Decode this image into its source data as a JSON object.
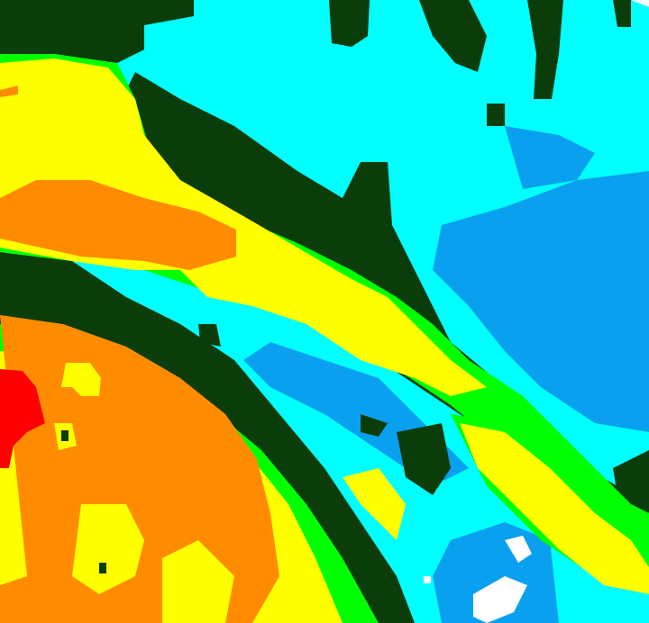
{
  "map": {
    "type": "classified raster",
    "colors": {
      "background": "#00ffff",
      "dark_green": "#0b3d0b",
      "green": "#00ff00",
      "yellow": "#ffff00",
      "orange": "#ff8c00",
      "red": "#ff0000",
      "blue": "#0aa0f0",
      "white": "#ffffff"
    }
  }
}
